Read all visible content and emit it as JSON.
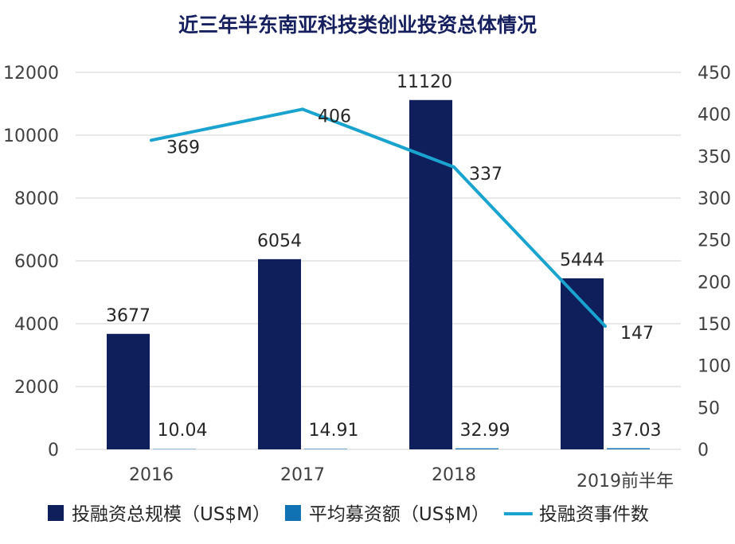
{
  "chart_data": {
    "type": "bar",
    "title": "近三年半东南亚科技类创业投资总体情况",
    "categories": [
      "2016",
      "2017",
      "2018",
      "2019前半年"
    ],
    "series": [
      {
        "name": "投融资总规模（US$M）",
        "type": "bar",
        "axis": "left",
        "color": "#0e1f5b",
        "values": [
          3677,
          6054,
          11120,
          5444
        ]
      },
      {
        "name": "平均募资额（US$M）",
        "type": "bar",
        "axis": "left",
        "color": "#1172b3",
        "values": [
          10.04,
          14.91,
          32.99,
          37.03
        ]
      },
      {
        "name": "投融资事件数",
        "type": "line",
        "axis": "right",
        "color": "#1aa3cf",
        "values": [
          369,
          406,
          337,
          147
        ]
      }
    ],
    "data_labels": {
      "total": [
        "3677",
        "6054",
        "11120",
        "5444"
      ],
      "avg": [
        "10.04",
        "14.91",
        "32.99",
        "37.03"
      ],
      "events": [
        "369",
        "406",
        "337",
        "147"
      ]
    },
    "y_left": {
      "ylim": [
        0,
        12000
      ],
      "ticks": [
        "0",
        "2000",
        "4000",
        "6000",
        "8000",
        "10000",
        "12000"
      ]
    },
    "y_right": {
      "ylim": [
        0,
        450
      ],
      "ticks": [
        "0",
        "50",
        "100",
        "150",
        "200",
        "250",
        "300",
        "350",
        "400",
        "450"
      ]
    },
    "grid": true,
    "legend_position": "bottom"
  }
}
